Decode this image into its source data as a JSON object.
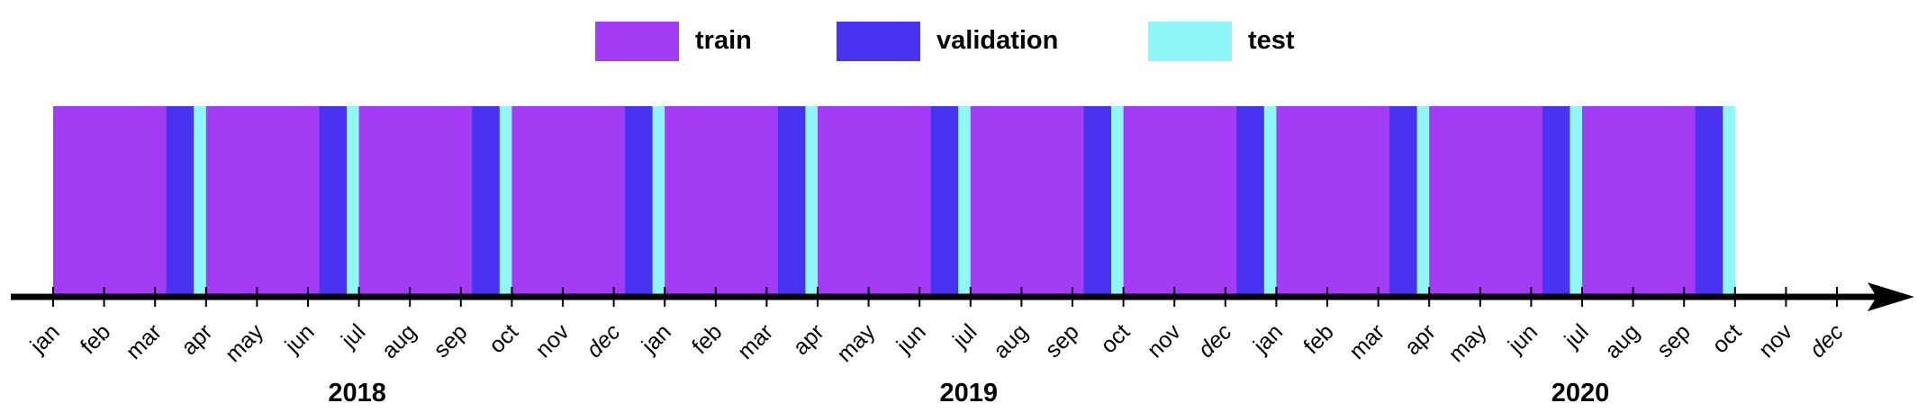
{
  "legend": [
    {
      "key": "train",
      "label": "train",
      "color": "#a53cf5"
    },
    {
      "key": "validation",
      "label": "validation",
      "color": "#4733f0"
    },
    {
      "key": "test",
      "label": "test",
      "color": "#8ff7f5"
    }
  ],
  "axis": {
    "months": [
      "jan",
      "feb",
      "mar",
      "apr",
      "may",
      "jun",
      "jul",
      "aug",
      "sep",
      "oct",
      "nov",
      "dec"
    ],
    "italic_months": [
      "dec"
    ],
    "years": [
      "2018",
      "2019",
      "2020"
    ],
    "axis_color": "#000000"
  },
  "splits": [
    {
      "segment": 1,
      "train": [
        "2018-01",
        "2018-03"
      ],
      "validation": [
        "2018-03",
        "2018-04"
      ],
      "test": [
        "2018-04",
        "2018-04"
      ]
    },
    {
      "segment": 2,
      "train": [
        "2018-04",
        "2018-06"
      ],
      "validation": [
        "2018-06",
        "2018-07"
      ],
      "test": [
        "2018-07",
        "2018-07"
      ]
    },
    {
      "segment": 3,
      "train": [
        "2018-07",
        "2018-09"
      ],
      "validation": [
        "2018-09",
        "2018-10"
      ],
      "test": [
        "2018-10",
        "2018-10"
      ]
    },
    {
      "segment": 4,
      "train": [
        "2018-10",
        "2018-12"
      ],
      "validation": [
        "2018-12",
        "2019-01"
      ],
      "test": [
        "2019-01",
        "2019-01"
      ]
    },
    {
      "segment": 5,
      "train": [
        "2019-01",
        "2019-03"
      ],
      "validation": [
        "2019-03",
        "2019-04"
      ],
      "test": [
        "2019-04",
        "2019-04"
      ]
    },
    {
      "segment": 6,
      "train": [
        "2019-04",
        "2019-06"
      ],
      "validation": [
        "2019-06",
        "2019-07"
      ],
      "test": [
        "2019-07",
        "2019-07"
      ]
    },
    {
      "segment": 7,
      "train": [
        "2019-07",
        "2019-09"
      ],
      "validation": [
        "2019-09",
        "2019-10"
      ],
      "test": [
        "2019-10",
        "2019-10"
      ]
    },
    {
      "segment": 8,
      "train": [
        "2019-10",
        "2019-12"
      ],
      "validation": [
        "2019-12",
        "2020-01"
      ],
      "test": [
        "2020-01",
        "2020-01"
      ]
    },
    {
      "segment": 9,
      "train": [
        "2020-01",
        "2020-03"
      ],
      "validation": [
        "2020-03",
        "2020-04"
      ],
      "test": [
        "2020-04",
        "2020-04"
      ]
    },
    {
      "segment": 10,
      "train": [
        "2020-04",
        "2020-06"
      ],
      "validation": [
        "2020-06",
        "2020-07"
      ],
      "test": [
        "2020-07",
        "2020-07"
      ]
    },
    {
      "segment": 11,
      "train": [
        "2020-07",
        "2020-09"
      ],
      "validation": [
        "2020-09",
        "2020-10"
      ],
      "test": [
        "2020-10",
        "2020-10"
      ]
    }
  ]
}
